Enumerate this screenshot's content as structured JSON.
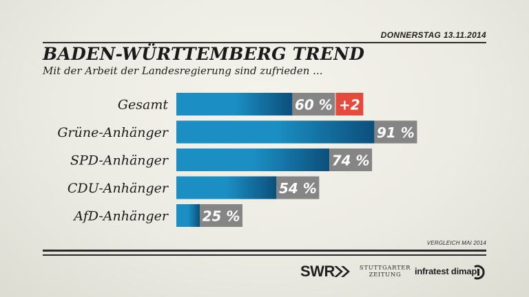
{
  "header": {
    "date": "DONNERSTAG  13.11.2014",
    "title": "BADEN-WÜRTTEMBERG TREND",
    "subtitle": "Mit der Arbeit der Landesregierung sind zufrieden ..."
  },
  "chart_data": {
    "type": "bar",
    "orientation": "horizontal",
    "categories": [
      "Gesamt",
      "Grüne-Anhänger",
      "SPD-Anhänger",
      "CDU-Anhänger",
      "AfD-Anhänger"
    ],
    "values": [
      60,
      91,
      74,
      54,
      25
    ],
    "value_labels": [
      "60 %",
      "91 %",
      "74 %",
      "54 %",
      "25 %"
    ],
    "changes": [
      {
        "category": "Gesamt",
        "label": "+2"
      }
    ],
    "unit": "%",
    "xlim": [
      0,
      100
    ],
    "grid": false,
    "legend": "none",
    "colors": {
      "bar_light": "#1b8fc4",
      "bar_dark": "#0c4f7b",
      "value_box": "#858585",
      "change_box": "#e54b3d"
    }
  },
  "footer": {
    "note": "VERGLEICH MAI 2014",
    "logos": {
      "swr": "SWR",
      "stuttgarter_line1": "STUTTGARTER",
      "stuttgarter_line2": "ZEITUNG",
      "infratest": "infratest dimap"
    }
  }
}
